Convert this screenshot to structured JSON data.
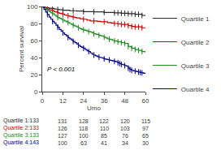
{
  "chart_data": {
    "type": "line",
    "line_style": "step",
    "xlabel": "Umo",
    "ylabel": "Percent survival",
    "xlim": [
      0,
      60
    ],
    "ylim": [
      0,
      100
    ],
    "xticks": [
      0,
      12,
      24,
      36,
      48,
      60
    ],
    "yticks": [
      0,
      20,
      40,
      60,
      80,
      100
    ],
    "grid": false,
    "legend": "right",
    "annotations": [
      {
        "text": "P < 0.001",
        "x": 2,
        "y": 20
      }
    ],
    "series": [
      {
        "name": "Quartile 1",
        "color": "#2b2b2b",
        "x": [
          0,
          0.5,
          1,
          2,
          3,
          4,
          5,
          6,
          7,
          8,
          9,
          10,
          11,
          12,
          14,
          16,
          18,
          20,
          22,
          24,
          26,
          28,
          30,
          32,
          34,
          36,
          38,
          40,
          42,
          44,
          46,
          48,
          50,
          52,
          54,
          56,
          58,
          60
        ],
        "values": [
          100,
          99.2,
          99.2,
          98.5,
          98.5,
          98.0,
          97.7,
          97.7,
          97.0,
          96.9,
          96.5,
          96.2,
          96.0,
          95.5,
          95.5,
          95.0,
          95.0,
          94.7,
          94.7,
          93.9,
          93.9,
          93.9,
          93.6,
          93.6,
          93.6,
          93.0,
          93.0,
          93.0,
          92.5,
          92.5,
          92.0,
          92.0,
          91.5,
          91.5,
          90.8,
          90.8,
          89.5,
          88.5
        ],
        "censored": [
          3,
          6,
          9,
          12,
          18,
          24,
          30,
          36,
          42,
          44,
          46,
          48,
          50,
          52,
          54,
          56,
          58
        ]
      },
      {
        "name": "Quartile 2",
        "color": "#cc0000",
        "x": [
          0,
          1,
          2,
          3,
          4,
          5,
          6,
          7,
          8,
          9,
          10,
          11,
          12,
          13,
          14,
          15,
          16,
          17,
          18,
          19,
          20,
          22,
          24,
          26,
          28,
          30,
          32,
          34,
          36,
          38,
          40,
          42,
          44,
          46,
          48,
          50,
          52,
          54,
          56,
          58,
          60
        ],
        "values": [
          100,
          99.0,
          98.0,
          97.0,
          96.0,
          95.5,
          95.0,
          94.0,
          93.5,
          92.5,
          92.0,
          91.5,
          91.0,
          90.0,
          89.5,
          89.0,
          88.5,
          88.0,
          87.5,
          87.0,
          86.5,
          85.5,
          85.0,
          84.0,
          83.0,
          83.0,
          82.5,
          82.0,
          82.0,
          81.0,
          80.5,
          80.0,
          79.5,
          79.0,
          79.0,
          77.5,
          76.5,
          76.0,
          76.0,
          75.0,
          74.5
        ],
        "censored": [
          3,
          6,
          9,
          12,
          15,
          18,
          24,
          30,
          36,
          42,
          44,
          46,
          48,
          50,
          52,
          54,
          56,
          58
        ]
      },
      {
        "name": "Quartile 3",
        "color": "#228B22",
        "x": [
          0,
          1,
          2,
          3,
          4,
          5,
          6,
          7,
          8,
          9,
          10,
          11,
          12,
          13,
          14,
          15,
          16,
          17,
          18,
          19,
          20,
          21,
          22,
          23,
          24,
          25,
          26,
          27,
          28,
          29,
          30,
          31,
          32,
          33,
          34,
          35,
          36,
          37,
          38,
          39,
          40,
          41,
          42,
          44,
          46,
          48,
          50,
          52,
          54,
          56,
          58,
          60
        ],
        "values": [
          100,
          98.5,
          97.0,
          95.5,
          94.0,
          92.5,
          91.5,
          90.0,
          88.5,
          87.0,
          86.0,
          85.0,
          84.0,
          83.0,
          82.0,
          81.0,
          80.0,
          79.0,
          78.0,
          77.0,
          76.0,
          75.0,
          74.0,
          73.0,
          72.5,
          72.0,
          71.0,
          70.5,
          70.0,
          69.0,
          68.0,
          67.5,
          67.0,
          66.0,
          65.5,
          65.0,
          64.0,
          63.0,
          62.0,
          61.5,
          61.0,
          60.0,
          59.5,
          58.5,
          57.5,
          56.5,
          53.0,
          51.0,
          49.5,
          48.5,
          47.0,
          46.0
        ],
        "censored": [
          3,
          6,
          9,
          12,
          15,
          18,
          21,
          24,
          27,
          30,
          33,
          36,
          39,
          42,
          44,
          46,
          48,
          50,
          52,
          54,
          56,
          58
        ]
      },
      {
        "name": "Quartile 4",
        "color": "#00008B",
        "x": [
          0,
          1,
          2,
          3,
          4,
          5,
          6,
          7,
          8,
          9,
          10,
          11,
          12,
          13,
          14,
          15,
          16,
          17,
          18,
          19,
          20,
          21,
          22,
          23,
          24,
          25,
          26,
          27,
          28,
          29,
          30,
          31,
          32,
          33,
          34,
          35,
          36,
          37,
          38,
          39,
          40,
          41,
          42,
          43,
          44,
          45,
          46,
          47,
          48,
          49,
          50,
          51,
          52,
          53,
          54,
          55,
          56,
          57,
          58,
          59,
          60
        ],
        "values": [
          100,
          96.5,
          93.5,
          90.5,
          87.5,
          85.0,
          82.5,
          80.5,
          78.0,
          75.5,
          73.0,
          71.0,
          69.0,
          67.0,
          65.5,
          63.5,
          62.0,
          60.5,
          59.0,
          57.5,
          56.0,
          54.5,
          53.0,
          52.0,
          51.0,
          49.5,
          48.0,
          47.0,
          45.5,
          44.0,
          43.0,
          42.0,
          41.0,
          40.5,
          40.0,
          39.5,
          38.5,
          38.0,
          37.5,
          37.0,
          36.5,
          36.0,
          35.5,
          35.0,
          34.0,
          33.0,
          32.0,
          31.5,
          30.5,
          30.0,
          27.5,
          26.0,
          25.0,
          24.5,
          24.0,
          23.5,
          23.0,
          22.5,
          22.0,
          21.5,
          21.5
        ],
        "censored": [
          3,
          6,
          9,
          12,
          15,
          18,
          21,
          24,
          27,
          30,
          33,
          36,
          39,
          42,
          44,
          45,
          46,
          48,
          50,
          51,
          52,
          54,
          56,
          57,
          58
        ]
      }
    ],
    "table_rows": [
      [
        "Quartile 1:133",
        "131",
        "128",
        "122",
        "120",
        "115"
      ],
      [
        "Quartile 2:133",
        "126",
        "118",
        "110",
        "103",
        "97"
      ],
      [
        "Quartile 3:133",
        "127",
        "100",
        "85",
        "76",
        "65"
      ],
      [
        "Quartile 4:143",
        "100",
        "63",
        "41",
        "34",
        "30"
      ]
    ]
  }
}
